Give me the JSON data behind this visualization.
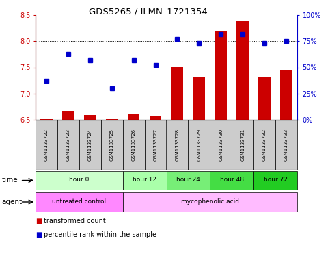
{
  "title": "GDS5265 / ILMN_1721354",
  "samples": [
    "GSM1133722",
    "GSM1133723",
    "GSM1133724",
    "GSM1133725",
    "GSM1133726",
    "GSM1133727",
    "GSM1133728",
    "GSM1133729",
    "GSM1133730",
    "GSM1133731",
    "GSM1133732",
    "GSM1133733"
  ],
  "transformed_count": [
    6.51,
    6.67,
    6.59,
    6.51,
    6.6,
    6.58,
    7.5,
    7.33,
    8.18,
    8.38,
    7.33,
    7.45
  ],
  "percentile_rank": [
    37,
    63,
    57,
    30,
    57,
    52,
    77,
    73,
    82,
    82,
    73,
    75
  ],
  "ylim_left": [
    6.5,
    8.5
  ],
  "ylim_right": [
    0,
    100
  ],
  "yticks_left": [
    6.5,
    7.0,
    7.5,
    8.0,
    8.5
  ],
  "yticks_right": [
    0,
    25,
    50,
    75,
    100
  ],
  "ytick_labels_right": [
    "0%",
    "25%",
    "50%",
    "75%",
    "100%"
  ],
  "bar_color": "#cc0000",
  "dot_color": "#0000cc",
  "time_groups": [
    {
      "label": "hour 0",
      "start": 0,
      "end": 3,
      "color": "#ccffcc"
    },
    {
      "label": "hour 12",
      "start": 4,
      "end": 5,
      "color": "#aaffaa"
    },
    {
      "label": "hour 24",
      "start": 6,
      "end": 7,
      "color": "#77ee77"
    },
    {
      "label": "hour 48",
      "start": 8,
      "end": 9,
      "color": "#44dd44"
    },
    {
      "label": "hour 72",
      "start": 10,
      "end": 11,
      "color": "#22cc22"
    }
  ],
  "agent_groups": [
    {
      "label": "untreated control",
      "start": 0,
      "end": 3,
      "color": "#ff88ff"
    },
    {
      "label": "mycophenolic acid",
      "start": 4,
      "end": 11,
      "color": "#ffbbff"
    }
  ],
  "sample_bg_color": "#cccccc",
  "left_axis_color": "#cc0000",
  "right_axis_color": "#0000cc",
  "legend_items": [
    {
      "label": "transformed count",
      "color": "#cc0000"
    },
    {
      "label": "percentile rank within the sample",
      "color": "#0000cc"
    }
  ]
}
